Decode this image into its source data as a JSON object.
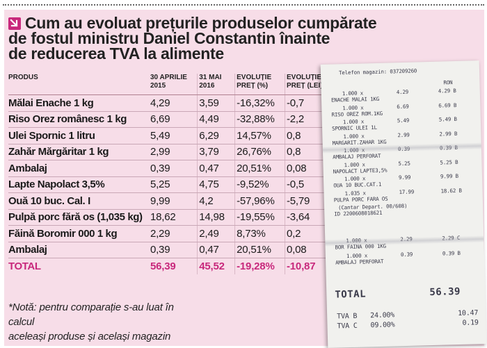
{
  "headline": {
    "line1": "Cum au evoluat prețurile produselor cumpărate",
    "line2": "de fostul ministru Daniel Constantin înainte",
    "line3": "de reducerea TVA la alimente",
    "icon": "arrow-down-right-icon",
    "icon_color": "#c8287c"
  },
  "table": {
    "headers": {
      "product": "PRODUS",
      "date1": "30 APRILIE\n2015",
      "date2": "31 MAI\n2016",
      "evo_pct": "EVOLUȚIE\nPREȚ (%)",
      "evo_lei": "EVOLUȚIE\nPREȚ (LEI)"
    },
    "rows": [
      {
        "product": "Mălai Enache 1 kg",
        "p2015": "4,29",
        "p2016": "3,59",
        "pct": "-16,32%",
        "lei": "-0,7"
      },
      {
        "product": "Riso Orez românesc 1 kg",
        "p2015": "6,69",
        "p2016": "4,49",
        "pct": "-32,88%",
        "lei": "-2,2"
      },
      {
        "product": "Ulei Spornic 1 litru",
        "p2015": "5,49",
        "p2016": "6,29",
        "pct": "14,57%",
        "lei": "0,8"
      },
      {
        "product": "Zahăr Mărgăritar 1 kg",
        "p2015": "2,99",
        "p2016": "3,79",
        "pct": "26,76%",
        "lei": "0,8"
      },
      {
        "product": "Ambalaj",
        "p2015": "0,39",
        "p2016": "0,47",
        "pct": "20,51%",
        "lei": "0,08"
      },
      {
        "product": "Lapte Napolact 3,5%",
        "p2015": "5,25",
        "p2016": "4,75",
        "pct": "-9,52%",
        "lei": "-0,5"
      },
      {
        "product": "Ouă 10 buc. Cal. I",
        "p2015": "9,99",
        "p2016": "4,2",
        "pct": "-57,96%",
        "lei": "-5,79"
      },
      {
        "product": "Pulpă porc fără os (1,035 kg)",
        "p2015": "18,62",
        "p2016": "14,98",
        "pct": "-19,55%",
        "lei": "-3,64"
      },
      {
        "product": "Făină Boromir 000 1 kg",
        "p2015": "2,29",
        "p2016": "2,49",
        "pct": "8,73%",
        "lei": "0,2"
      },
      {
        "product": "Ambalaj",
        "p2015": "0,39",
        "p2016": "0,47",
        "pct": "20,51%",
        "lei": "0,08"
      }
    ],
    "total": {
      "product": "TOTAL",
      "p2015": "56,39",
      "p2016": "45,52",
      "pct": "-19,28%",
      "lei": "-10,87"
    },
    "total_color": "#c8287c"
  },
  "note": {
    "line1": "*Notă: pentru comparație s-au luat în calcul",
    "line2": "aceleași produse și același magazin"
  },
  "receipt": {
    "header": "Telefon magazin: 037209260",
    "ron": "RON",
    "items": [
      {
        "qty": "1.000 x",
        "unit": "4.29",
        "name": "ENACHE MALAI 1KG",
        "amount": "4.29 B"
      },
      {
        "qty": "1.000 x",
        "unit": "6.69",
        "name": "RISO OREZ ROM.1KG",
        "amount": "6.69 B"
      },
      {
        "qty": "1.000 x",
        "unit": "5.49",
        "name": "SPORNIC ULEI 1L",
        "amount": "5.49 B"
      },
      {
        "qty": "1.000 x",
        "unit": "2.99",
        "name": "MARGARIT.ZAHAR 1KG",
        "amount": "2.99 B"
      },
      {
        "qty": "1.000 x",
        "unit": "0.39",
        "name": "AMBALAJ PERFORAT",
        "amount": "0.39 B"
      },
      {
        "qty": "1.000 x",
        "unit": "5.25",
        "name": "NAPOLACT LAPTE3,5%",
        "amount": "5.25 B"
      },
      {
        "qty": "1.000 x",
        "unit": "9.99",
        "name": "OUA 10 BUC.CAT.1",
        "amount": "9.99 B"
      },
      {
        "qty": "1.035 x",
        "unit": "17.99",
        "name": "PULPA PORC FARA OS",
        "amount": "18.62 B"
      }
    ],
    "cantar": "(Cantar Depart.      00/608)",
    "barcode": "ID 2200608018621",
    "items2": [
      {
        "qty": "1.000 x",
        "unit": "2.29",
        "name": "BOR FAINA 000 1KG",
        "amount": "2.29 C"
      },
      {
        "qty": "1.000 x",
        "unit": "0.39",
        "name": "AMBALAJ PERFORAT",
        "amount": "0.39 B"
      }
    ],
    "total_label": "TOTAL",
    "total_value": "56.39",
    "vat": [
      {
        "label": "TVA B",
        "rate": "24.00%",
        "value": "10.47"
      },
      {
        "label": "TVA C",
        "rate": "09.00%",
        "value": "0.19"
      }
    ]
  },
  "colors": {
    "panel_bg": "#f7dde8",
    "accent": "#c8287c",
    "receipt_paper": "#f1f1ee"
  }
}
